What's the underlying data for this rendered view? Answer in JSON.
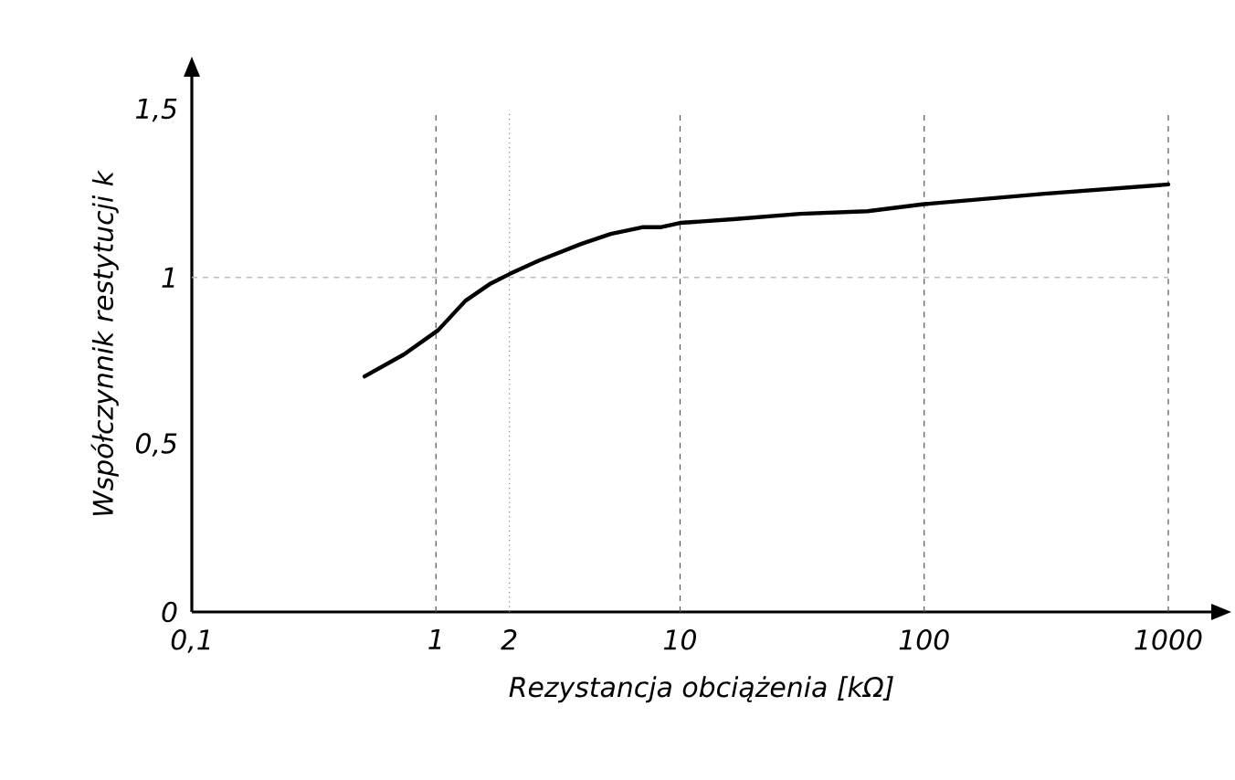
{
  "chart_data": {
    "type": "line",
    "xlabel": "Rezystancja obciążenia [kΩ]",
    "ylabel": "Współczynnik restytucji k",
    "log": "x",
    "xlim": [
      0.1,
      1500
    ],
    "ylim": [
      0,
      1.6
    ],
    "xticks": [
      {
        "value": 0.1,
        "label": "0,1"
      },
      1,
      2,
      10,
      100,
      1000
    ],
    "yticks": [
      0,
      {
        "value": 0.5,
        "label": "0,5"
      },
      1,
      {
        "value": 1.5,
        "label": "1,5"
      }
    ],
    "series": [
      {
        "color": "#000000",
        "x": [
          0.51,
          0.74,
          1.02,
          1.32,
          1.66,
          2.0,
          2.63,
          3.93,
          5.2,
          7.0,
          8.3,
          10,
          16.5,
          31,
          58.6,
          100,
          311,
          1000
        ],
        "values": [
          0.704,
          0.77,
          0.842,
          0.93,
          0.98,
          1.01,
          1.05,
          1.1,
          1.13,
          1.15,
          1.15,
          1.163,
          1.174,
          1.19,
          1.198,
          1.219,
          1.25,
          1.278
        ]
      }
    ],
    "ref_lines": [
      {
        "axis": "x",
        "value": 1,
        "color": "#555555",
        "line_style": "dashed"
      },
      {
        "axis": "x",
        "value": 2,
        "color": "#888888",
        "line_style": "dotted"
      },
      {
        "axis": "x",
        "value": 10,
        "color": "#555555",
        "line_style": "dashed"
      },
      {
        "axis": "x",
        "value": 100,
        "color": "#555555",
        "line_style": "dashed"
      },
      {
        "axis": "x",
        "value": 1000,
        "color": "#555555",
        "line_style": "dashed"
      },
      {
        "axis": "y",
        "value": 1,
        "color": "#bbbbbb",
        "line_style": "dashed"
      }
    ],
    "marker": "none",
    "line_style": "solid",
    "grid": false
  }
}
